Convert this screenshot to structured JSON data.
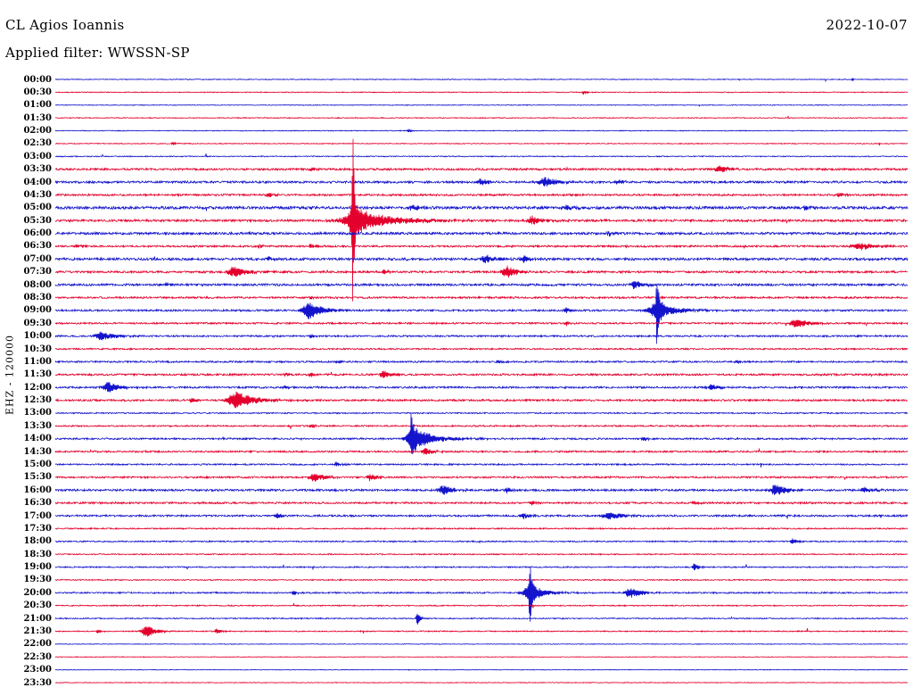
{
  "header": {
    "station": "CL Agios Ioannis",
    "date": "2022-10-07",
    "filter_line": "Applied filter: WWSSN-SP"
  },
  "axis": {
    "vertical_label": "EHZ - 120000"
  },
  "colors": {
    "blue": "#1414cc",
    "red": "#e4002d",
    "background": "#ffffff",
    "text": "#000000"
  },
  "chart_data": {
    "type": "line",
    "subtype": "helicorder-seismogram",
    "title": "CL Agios Ioannis",
    "date": "2022-10-07",
    "filter": "WWSSN-SP",
    "channel_label": "EHZ - 120000",
    "row_duration_minutes": 30,
    "x_range_fraction": [
      0,
      1
    ],
    "rows": [
      {
        "time": "00:00",
        "color": "blue",
        "noise": 0.4,
        "events": [
          [
            0.935,
            2,
            0.002
          ]
        ]
      },
      {
        "time": "00:30",
        "color": "red",
        "noise": 0.45,
        "events": [
          [
            0.62,
            2.5,
            0.003
          ]
        ]
      },
      {
        "time": "01:00",
        "color": "blue",
        "noise": 0.4,
        "events": []
      },
      {
        "time": "01:30",
        "color": "red",
        "noise": 0.45,
        "events": []
      },
      {
        "time": "02:00",
        "color": "blue",
        "noise": 0.45,
        "events": [
          [
            0.415,
            2.5,
            0.003
          ]
        ]
      },
      {
        "time": "02:30",
        "color": "red",
        "noise": 0.45,
        "events": [
          [
            0.138,
            2,
            0.003
          ]
        ]
      },
      {
        "time": "03:00",
        "color": "blue",
        "noise": 0.55,
        "events": []
      },
      {
        "time": "03:30",
        "color": "red",
        "noise": 1.1,
        "events": [
          [
            0.78,
            4,
            0.012
          ],
          [
            0.3,
            2,
            0.004
          ]
        ]
      },
      {
        "time": "04:00",
        "color": "blue",
        "noise": 1.2,
        "events": [
          [
            0.5,
            4,
            0.008
          ],
          [
            0.575,
            5,
            0.015
          ],
          [
            0.66,
            3,
            0.006
          ]
        ]
      },
      {
        "time": "04:30",
        "color": "red",
        "noise": 1.0,
        "events": [
          [
            0.25,
            2.5,
            0.005
          ],
          [
            0.92,
            3,
            0.005
          ]
        ]
      },
      {
        "time": "05:00",
        "color": "blue",
        "noise": 1.5,
        "events": [
          [
            0.42,
            3,
            0.01
          ],
          [
            0.6,
            3,
            0.01
          ],
          [
            0.88,
            2.5,
            0.005
          ]
        ]
      },
      {
        "time": "05:30",
        "color": "red",
        "noise": 1.2,
        "events": [
          [
            0.349,
            100,
            0.0015
          ],
          [
            0.349,
            20,
            0.008
          ],
          [
            0.36,
            8,
            0.05
          ],
          [
            0.56,
            5,
            0.01
          ]
        ]
      },
      {
        "time": "06:00",
        "color": "blue",
        "noise": 1.3,
        "events": [
          [
            0.65,
            2.5,
            0.006
          ]
        ]
      },
      {
        "time": "06:30",
        "color": "red",
        "noise": 1.0,
        "events": [
          [
            0.025,
            3,
            0.004
          ],
          [
            0.24,
            3,
            0.004
          ],
          [
            0.3,
            2.5,
            0.004
          ],
          [
            0.945,
            4,
            0.018
          ]
        ]
      },
      {
        "time": "07:00",
        "color": "blue",
        "noise": 1.3,
        "events": [
          [
            0.505,
            5,
            0.01
          ],
          [
            0.55,
            4,
            0.008
          ],
          [
            0.25,
            2.5,
            0.005
          ]
        ]
      },
      {
        "time": "07:30",
        "color": "red",
        "noise": 1.1,
        "events": [
          [
            0.21,
            6,
            0.015
          ],
          [
            0.53,
            7,
            0.012
          ],
          [
            0.385,
            3,
            0.005
          ]
        ]
      },
      {
        "time": "08:00",
        "color": "blue",
        "noise": 1.2,
        "events": [
          [
            0.68,
            5,
            0.01
          ],
          [
            0.13,
            2.5,
            0.004
          ]
        ]
      },
      {
        "time": "08:30",
        "color": "red",
        "noise": 1.0,
        "events": [
          [
            0.3,
            2,
            0.004
          ]
        ]
      },
      {
        "time": "09:00",
        "color": "blue",
        "noise": 1.0,
        "events": [
          [
            0.298,
            10,
            0.015
          ],
          [
            0.706,
            42,
            0.002
          ],
          [
            0.706,
            10,
            0.02
          ],
          [
            0.6,
            3,
            0.005
          ]
        ]
      },
      {
        "time": "09:30",
        "color": "red",
        "noise": 0.9,
        "events": [
          [
            0.87,
            5,
            0.015
          ],
          [
            0.6,
            2.5,
            0.004
          ]
        ]
      },
      {
        "time": "10:00",
        "color": "blue",
        "noise": 0.9,
        "events": [
          [
            0.055,
            5,
            0.015
          ],
          [
            0.3,
            2,
            0.004
          ]
        ]
      },
      {
        "time": "10:30",
        "color": "red",
        "noise": 0.8,
        "events": []
      },
      {
        "time": "11:00",
        "color": "blue",
        "noise": 0.9,
        "events": [
          [
            0.33,
            2,
            0.004
          ],
          [
            0.52,
            2,
            0.004
          ],
          [
            0.8,
            2,
            0.004
          ]
        ]
      },
      {
        "time": "11:30",
        "color": "red",
        "noise": 1.0,
        "events": [
          [
            0.385,
            5,
            0.008
          ],
          [
            0.3,
            2.5,
            0.005
          ],
          [
            0.27,
            2,
            0.004
          ]
        ]
      },
      {
        "time": "12:00",
        "color": "blue",
        "noise": 1.0,
        "events": [
          [
            0.062,
            6,
            0.012
          ],
          [
            0.77,
            4,
            0.008
          ],
          [
            0.27,
            2,
            0.004
          ]
        ]
      },
      {
        "time": "12:30",
        "color": "red",
        "noise": 1.0,
        "events": [
          [
            0.213,
            10,
            0.02
          ],
          [
            0.16,
            3,
            0.005
          ]
        ]
      },
      {
        "time": "13:00",
        "color": "blue",
        "noise": 0.7,
        "events": []
      },
      {
        "time": "13:30",
        "color": "red",
        "noise": 0.8,
        "events": [
          [
            0.3,
            2.5,
            0.005
          ]
        ]
      },
      {
        "time": "14:00",
        "color": "blue",
        "noise": 0.9,
        "events": [
          [
            0.418,
            22,
            0.0025
          ],
          [
            0.418,
            9,
            0.012
          ],
          [
            0.43,
            5,
            0.03
          ],
          [
            0.69,
            3,
            0.005
          ]
        ]
      },
      {
        "time": "14:30",
        "color": "red",
        "noise": 0.9,
        "events": [
          [
            0.435,
            4,
            0.008
          ]
        ]
      },
      {
        "time": "15:00",
        "color": "blue",
        "noise": 0.8,
        "events": [
          [
            0.33,
            3,
            0.005
          ]
        ]
      },
      {
        "time": "15:30",
        "color": "red",
        "noise": 0.95,
        "events": [
          [
            0.305,
            5,
            0.012
          ],
          [
            0.37,
            4,
            0.008
          ]
        ]
      },
      {
        "time": "16:00",
        "color": "blue",
        "noise": 1.1,
        "events": [
          [
            0.455,
            6,
            0.01
          ],
          [
            0.53,
            3,
            0.005
          ],
          [
            0.845,
            7,
            0.012
          ],
          [
            0.95,
            3,
            0.01
          ]
        ]
      },
      {
        "time": "16:30",
        "color": "red",
        "noise": 1.0,
        "events": [
          [
            0.56,
            2.5,
            0.005
          ],
          [
            0.75,
            2,
            0.004
          ]
        ]
      },
      {
        "time": "17:00",
        "color": "blue",
        "noise": 1.0,
        "events": [
          [
            0.26,
            3.5,
            0.005
          ],
          [
            0.55,
            3,
            0.008
          ],
          [
            0.65,
            4,
            0.015
          ]
        ]
      },
      {
        "time": "17:30",
        "color": "red",
        "noise": 0.7,
        "events": []
      },
      {
        "time": "18:00",
        "color": "blue",
        "noise": 0.7,
        "events": [
          [
            0.865,
            3.5,
            0.005
          ]
        ]
      },
      {
        "time": "18:30",
        "color": "red",
        "noise": 0.6,
        "events": []
      },
      {
        "time": "19:00",
        "color": "blue",
        "noise": 0.7,
        "events": [
          [
            0.75,
            4,
            0.005
          ]
        ]
      },
      {
        "time": "19:30",
        "color": "red",
        "noise": 0.6,
        "events": []
      },
      {
        "time": "20:00",
        "color": "blue",
        "noise": 0.8,
        "events": [
          [
            0.557,
            38,
            0.002
          ],
          [
            0.557,
            10,
            0.015
          ],
          [
            0.675,
            6,
            0.012
          ],
          [
            0.28,
            2.5,
            0.004
          ]
        ]
      },
      {
        "time": "20:30",
        "color": "red",
        "noise": 0.6,
        "events": []
      },
      {
        "time": "21:00",
        "color": "blue",
        "noise": 0.6,
        "events": [
          [
            0.425,
            8,
            0.003
          ]
        ]
      },
      {
        "time": "21:30",
        "color": "red",
        "noise": 0.6,
        "events": [
          [
            0.107,
            7,
            0.01
          ],
          [
            0.05,
            2,
            0.004
          ],
          [
            0.19,
            3,
            0.005
          ]
        ]
      },
      {
        "time": "22:00",
        "color": "blue",
        "noise": 0.35,
        "events": []
      },
      {
        "time": "22:30",
        "color": "red",
        "noise": 0.35,
        "events": []
      },
      {
        "time": "23:00",
        "color": "blue",
        "noise": 0.35,
        "events": []
      },
      {
        "time": "23:30",
        "color": "red",
        "noise": 0.35,
        "events": []
      }
    ]
  }
}
